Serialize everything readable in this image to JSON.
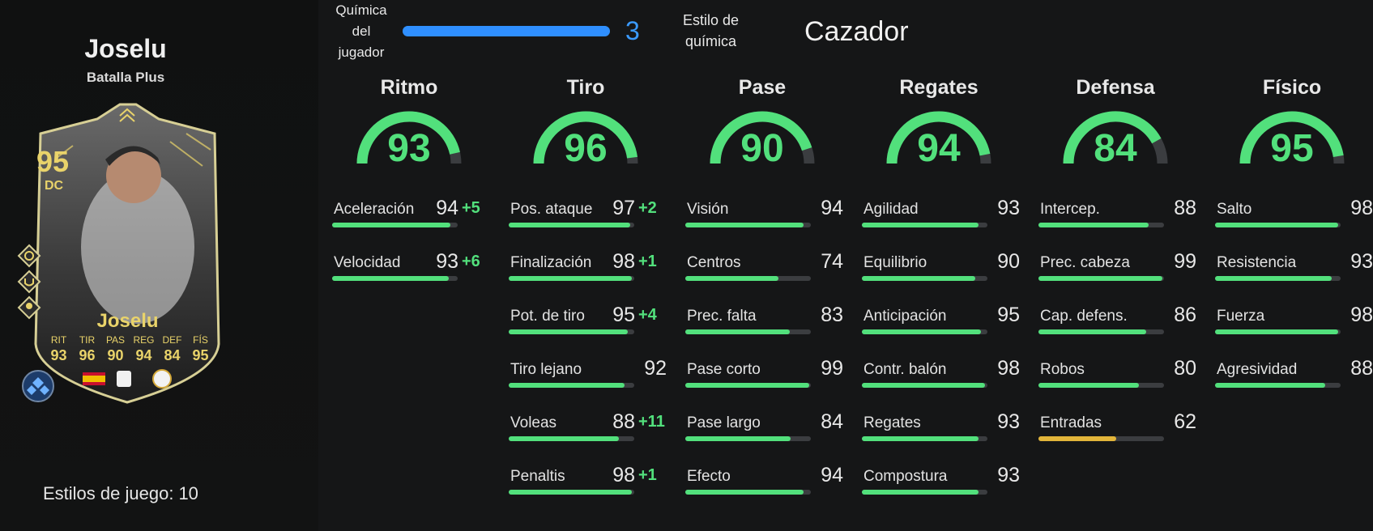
{
  "player": {
    "name": "Joselu",
    "card_variant": "Batalla Plus",
    "playstyles_label": "Estilos de juego:",
    "playstyles_count": "10",
    "card": {
      "rating": "95",
      "position": "DC",
      "name": "Joselu",
      "stats": [
        {
          "key": "RIT",
          "value": "93"
        },
        {
          "key": "TIR",
          "value": "96"
        },
        {
          "key": "PAS",
          "value": "90"
        },
        {
          "key": "REG",
          "value": "94"
        },
        {
          "key": "DEF",
          "value": "84"
        },
        {
          "key": "FÍS",
          "value": "95"
        }
      ]
    }
  },
  "chemistry": {
    "label": "Química del jugador",
    "value": "3",
    "bar_fraction": 1.0,
    "style_label": "Estilo de química",
    "style_value": "Cazador"
  },
  "colors": {
    "green": "#52e07c",
    "yellow": "#e2b53a",
    "blue": "#2f8fff",
    "track": "#3b3d40",
    "card_gold": "#e9d36a"
  },
  "categories": [
    {
      "title": "Ritmo",
      "value": "93",
      "stats": [
        {
          "name": "Aceleración",
          "value": "94",
          "bonus": "+5"
        },
        {
          "name": "Velocidad",
          "value": "93",
          "bonus": "+6"
        }
      ]
    },
    {
      "title": "Tiro",
      "value": "96",
      "stats": [
        {
          "name": "Pos. ataque",
          "value": "97",
          "bonus": "+2"
        },
        {
          "name": "Finalización",
          "value": "98",
          "bonus": "+1"
        },
        {
          "name": "Pot. de tiro",
          "value": "95",
          "bonus": "+4"
        },
        {
          "name": "Tiro lejano",
          "value": "92",
          "bonus": ""
        },
        {
          "name": "Voleas",
          "value": "88",
          "bonus": "+11"
        },
        {
          "name": "Penaltis",
          "value": "98",
          "bonus": "+1"
        }
      ]
    },
    {
      "title": "Pase",
      "value": "90",
      "stats": [
        {
          "name": "Visión",
          "value": "94",
          "bonus": ""
        },
        {
          "name": "Centros",
          "value": "74",
          "bonus": ""
        },
        {
          "name": "Prec. falta",
          "value": "83",
          "bonus": ""
        },
        {
          "name": "Pase corto",
          "value": "99",
          "bonus": ""
        },
        {
          "name": "Pase largo",
          "value": "84",
          "bonus": ""
        },
        {
          "name": "Efecto",
          "value": "94",
          "bonus": ""
        }
      ]
    },
    {
      "title": "Regates",
      "value": "94",
      "stats": [
        {
          "name": "Agilidad",
          "value": "93",
          "bonus": ""
        },
        {
          "name": "Equilibrio",
          "value": "90",
          "bonus": ""
        },
        {
          "name": "Anticipación",
          "value": "95",
          "bonus": ""
        },
        {
          "name": "Contr. balón",
          "value": "98",
          "bonus": ""
        },
        {
          "name": "Regates",
          "value": "93",
          "bonus": ""
        },
        {
          "name": "Compostura",
          "value": "93",
          "bonus": ""
        }
      ]
    },
    {
      "title": "Defensa",
      "value": "84",
      "stats": [
        {
          "name": "Intercep.",
          "value": "88",
          "bonus": ""
        },
        {
          "name": "Prec. cabeza",
          "value": "99",
          "bonus": ""
        },
        {
          "name": "Cap. defens.",
          "value": "86",
          "bonus": ""
        },
        {
          "name": "Robos",
          "value": "80",
          "bonus": ""
        },
        {
          "name": "Entradas",
          "value": "62",
          "bonus": ""
        }
      ]
    },
    {
      "title": "Físico",
      "value": "95",
      "stats": [
        {
          "name": "Salto",
          "value": "98",
          "bonus": ""
        },
        {
          "name": "Resistencia",
          "value": "93",
          "bonus": ""
        },
        {
          "name": "Fuerza",
          "value": "98",
          "bonus": ""
        },
        {
          "name": "Agresividad",
          "value": "88",
          "bonus": ""
        }
      ]
    }
  ]
}
